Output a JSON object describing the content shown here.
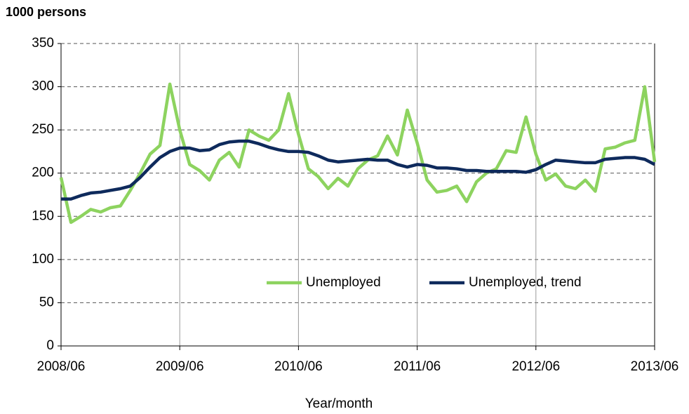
{
  "chart_data": {
    "type": "line",
    "y_axis_title": "1000 persons",
    "x_axis_label": "Year/month",
    "categories": [
      "2008/06",
      null,
      null,
      null,
      null,
      null,
      null,
      null,
      null,
      null,
      null,
      null,
      "2009/06",
      null,
      null,
      null,
      null,
      null,
      null,
      null,
      null,
      null,
      null,
      null,
      "2010/06",
      null,
      null,
      null,
      null,
      null,
      null,
      null,
      null,
      null,
      null,
      null,
      "2011/06",
      null,
      null,
      null,
      null,
      null,
      null,
      null,
      null,
      null,
      null,
      null,
      "2012/06",
      null,
      null,
      null,
      null,
      null,
      null,
      null,
      null,
      null,
      null,
      null,
      "2013/06"
    ],
    "series": [
      {
        "name": "Unemployed",
        "color": "#8dd35f",
        "values": [
          195,
          143,
          150,
          158,
          155,
          160,
          162,
          180,
          200,
          222,
          232,
          303,
          250,
          210,
          203,
          192,
          215,
          224,
          207,
          250,
          243,
          238,
          250,
          292,
          245,
          205,
          196,
          182,
          194,
          185,
          205,
          215,
          220,
          243,
          221,
          273,
          235,
          192,
          178,
          180,
          185,
          167,
          190,
          200,
          205,
          226,
          224,
          265,
          222,
          192,
          199,
          185,
          182,
          192,
          179,
          228,
          230,
          235,
          238,
          300,
          213
        ]
      },
      {
        "name": "Unemployed, trend",
        "color": "#0e2a5c",
        "values": [
          170,
          170,
          174,
          177,
          178,
          180,
          182,
          185,
          195,
          207,
          218,
          225,
          229,
          229,
          226,
          227,
          233,
          236,
          237,
          237,
          234,
          230,
          227,
          225,
          225,
          224,
          220,
          215,
          213,
          214,
          215,
          216,
          215,
          215,
          210,
          207,
          210,
          209,
          206,
          206,
          205,
          203,
          203,
          202,
          202,
          202,
          202,
          201,
          204,
          210,
          215,
          214,
          213,
          212,
          212,
          216,
          217,
          218,
          218,
          216,
          210
        ]
      }
    ],
    "ylim": [
      0,
      350
    ],
    "yticks": [
      0,
      50,
      100,
      150,
      200,
      250,
      300,
      350
    ],
    "grid": true,
    "legend": "inside-right"
  }
}
